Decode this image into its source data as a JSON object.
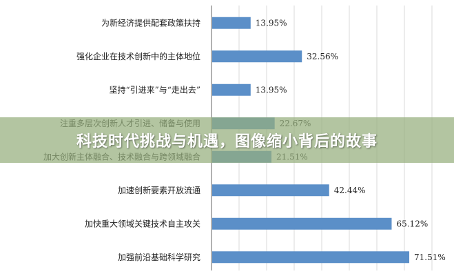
{
  "chart_data": {
    "type": "bar",
    "orientation": "horizontal",
    "categories": [
      "为新经济提供配套政策扶持",
      "强化企业在技术创新中的主体地位",
      "坚持“引进来”与“走出去”",
      "注重多层次创新人才引进、储备与使用",
      "加大创新主体融合、技术融合与跨领域融合",
      "加速创新要素开放流通",
      "加快重大领域关键技术自主攻关",
      "加强前沿基础科学研究"
    ],
    "values": [
      13.95,
      32.56,
      13.95,
      22.67,
      21.51,
      42.44,
      65.12,
      71.51
    ],
    "value_labels": [
      "13.95%",
      "32.56%",
      "13.95%",
      "22.67%",
      "21.51%",
      "42.44%",
      "65.12%",
      "71.51%"
    ],
    "xlim": [
      0,
      80
    ],
    "grid": true,
    "bar_color": "#5b8fc8"
  },
  "banner": {
    "text": "科技时代挑战与机遇，图像缩小背后的故事"
  }
}
